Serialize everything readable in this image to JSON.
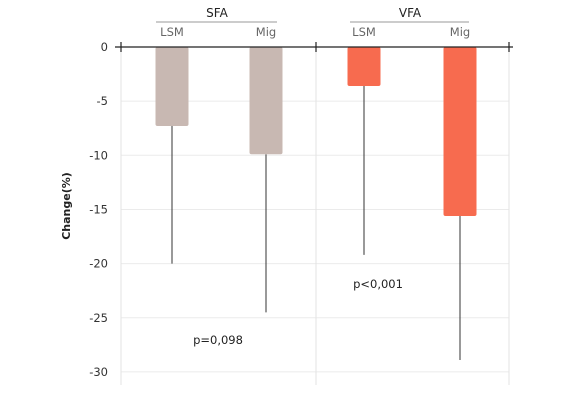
{
  "chart_data": {
    "type": "bar",
    "ylabel": "Change(%)",
    "ylim": [
      -31,
      0
    ],
    "yticks": [
      0,
      -5,
      -10,
      -15,
      -20,
      -25,
      -30
    ],
    "grid": true,
    "groups": [
      {
        "name": "SFA",
        "categories": [
          "LSM",
          "Mig"
        ],
        "values": [
          -7.3,
          -9.9
        ],
        "error_low": [
          -20,
          -24.5
        ],
        "color": "#c8b8b2",
        "annotation": "p=0,098"
      },
      {
        "name": "VFA",
        "categories": [
          "LSM",
          "Mig"
        ],
        "values": [
          -3.6,
          -15.6
        ],
        "error_low": [
          -19.2,
          -28.9
        ],
        "color": "#f76b4f",
        "annotation": "p<0,001"
      }
    ]
  }
}
